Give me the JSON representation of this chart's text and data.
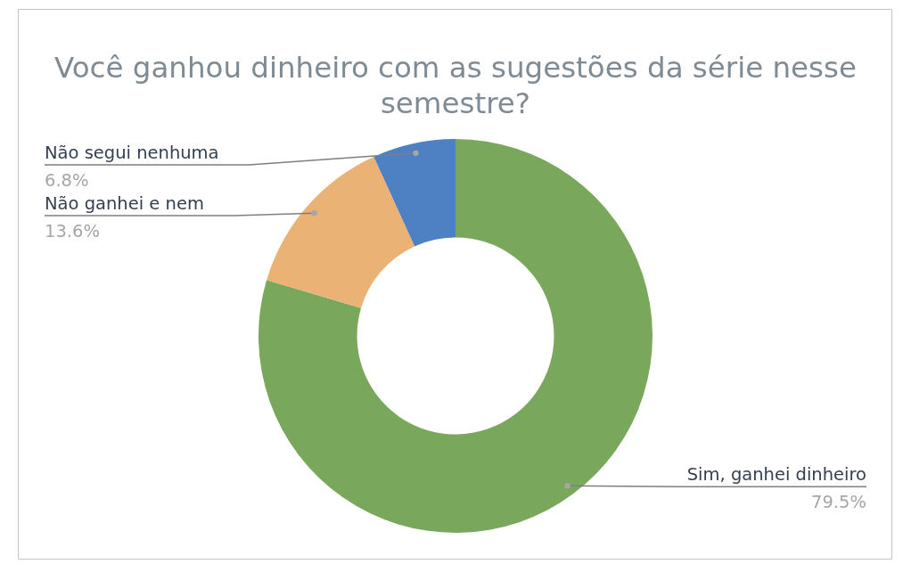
{
  "chart_data": {
    "type": "donut",
    "title": "Você ganhou dinheiro com as sugestões da série nesse semestre?",
    "categories": [
      "Sim, ganhei dinheiro",
      "Não ganhei e nem",
      "Não segui nenhuma"
    ],
    "values": [
      79.5,
      13.6,
      6.8
    ],
    "colors": [
      "#79a75b",
      "#ebb275",
      "#4e81c3"
    ],
    "value_labels": [
      "79.5%",
      "13.6%",
      "6.8%"
    ]
  }
}
